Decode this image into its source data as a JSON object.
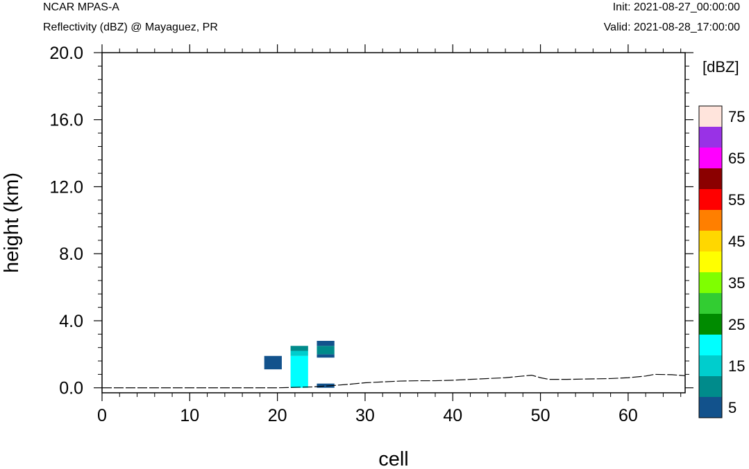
{
  "header": {
    "model": "NCAR MPAS-A",
    "subtitle": "Reflectivity (dBZ) @ Mayaguez, PR",
    "init": "Init: 2021-08-27_00:00:00",
    "valid": "Valid: 2021-08-28_17:00:00"
  },
  "chart_data": {
    "type": "heatmap",
    "title": "Reflectivity (dBZ) @ Mayaguez, PR",
    "xlabel": "cell",
    "ylabel": "height (km)",
    "xlim": [
      0,
      66.5
    ],
    "ylim": [
      -0.3,
      20.0
    ],
    "xticks": [
      0,
      10,
      20,
      30,
      40,
      50,
      60
    ],
    "xtick_labels": [
      "0",
      "10",
      "20",
      "30",
      "40",
      "50",
      "60"
    ],
    "yticks": [
      0,
      4,
      8,
      12,
      16,
      20
    ],
    "ytick_labels": [
      "0.0",
      "4.0",
      "8.0",
      "12.0",
      "16.0",
      "20.0"
    ],
    "colorbar": {
      "label": "[dBZ]",
      "levels": [
        5,
        10,
        15,
        20,
        25,
        30,
        35,
        40,
        45,
        50,
        55,
        60,
        65,
        70,
        75
      ],
      "tick_labels": [
        "5",
        "15",
        "25",
        "35",
        "45",
        "55",
        "65",
        "75"
      ],
      "colors": [
        "#12528c",
        "#008b8b",
        "#00cdcd",
        "#00ffff",
        "#008b00",
        "#32cd32",
        "#7fff00",
        "#ffff00",
        "#ffd700",
        "#ff7f00",
        "#ff0000",
        "#8b0000",
        "#ff00ff",
        "#9932e6",
        "#ffe4dc"
      ]
    },
    "cells": [
      {
        "x0": 18.5,
        "x1": 20.5,
        "y0": 1.1,
        "y1": 1.9,
        "dbz": 5
      },
      {
        "x0": 21.5,
        "x1": 23.5,
        "y0": 0.0,
        "y1": 1.9,
        "dbz": 20
      },
      {
        "x0": 21.5,
        "x1": 23.5,
        "y0": 1.9,
        "y1": 2.2,
        "dbz": 15
      },
      {
        "x0": 21.5,
        "x1": 23.5,
        "y0": 2.2,
        "y1": 2.5,
        "dbz": 10
      },
      {
        "x0": 24.5,
        "x1": 26.5,
        "y0": 1.8,
        "y1": 2.0,
        "dbz": 5
      },
      {
        "x0": 24.5,
        "x1": 26.5,
        "y0": 2.0,
        "y1": 2.5,
        "dbz": 10
      },
      {
        "x0": 24.5,
        "x1": 26.5,
        "y0": 2.5,
        "y1": 2.8,
        "dbz": 5
      },
      {
        "x0": 24.5,
        "x1": 26.5,
        "y0": 0.0,
        "y1": 0.25,
        "dbz": 5
      }
    ],
    "terrain": {
      "x": [
        0,
        10,
        20,
        24,
        26,
        28,
        30,
        32,
        34,
        36,
        38,
        40,
        42,
        44,
        46,
        48,
        49,
        50,
        51,
        53,
        55,
        58,
        60,
        62,
        63,
        65,
        66.5
      ],
      "y": [
        0.0,
        0.0,
        0.0,
        0.05,
        0.12,
        0.2,
        0.3,
        0.35,
        0.4,
        0.42,
        0.42,
        0.45,
        0.5,
        0.55,
        0.6,
        0.7,
        0.75,
        0.6,
        0.5,
        0.5,
        0.52,
        0.55,
        0.6,
        0.7,
        0.8,
        0.78,
        0.72
      ]
    }
  }
}
